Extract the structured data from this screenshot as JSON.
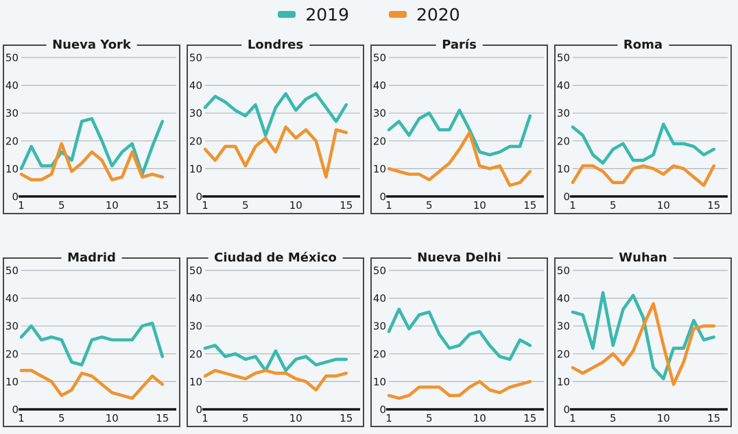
{
  "colors": {
    "background": "#f2f6f8",
    "series_2019": "#3bb8ae",
    "series_2020": "#f0932f",
    "grid": "#b0b5b9",
    "axis": "#141414",
    "frame": "#474747",
    "text": "#1a1a1a"
  },
  "legend": {
    "position": "top-center",
    "items": [
      {
        "label": "2019",
        "color": "#3bb8ae"
      },
      {
        "label": "2020",
        "color": "#f0932f"
      }
    ]
  },
  "chart_data": [
    {
      "type": "line",
      "title": "Nueva York",
      "x": [
        1,
        2,
        3,
        4,
        5,
        6,
        7,
        8,
        9,
        10,
        11,
        12,
        13,
        14,
        15
      ],
      "xticks": [
        1,
        5,
        10,
        15
      ],
      "yticks": [
        0,
        10,
        20,
        30,
        40,
        50
      ],
      "ylim": [
        0,
        50
      ],
      "grid": true,
      "series": [
        {
          "name": "2019",
          "color": "#3bb8ae",
          "values": [
            10,
            18,
            11,
            11,
            16,
            13,
            27,
            28,
            20,
            11,
            16,
            19,
            8,
            18,
            27
          ]
        },
        {
          "name": "2020",
          "color": "#f0932f",
          "values": [
            8,
            6,
            6,
            8,
            19,
            9,
            12,
            16,
            13,
            6,
            7,
            16,
            7,
            8,
            7
          ]
        }
      ]
    },
    {
      "type": "line",
      "title": "Londres",
      "x": [
        1,
        2,
        3,
        4,
        5,
        6,
        7,
        8,
        9,
        10,
        11,
        12,
        13,
        14,
        15
      ],
      "xticks": [
        1,
        5,
        10,
        15
      ],
      "yticks": [
        0,
        10,
        20,
        30,
        40,
        50
      ],
      "ylim": [
        0,
        50
      ],
      "grid": true,
      "series": [
        {
          "name": "2019",
          "color": "#3bb8ae",
          "values": [
            32,
            36,
            34,
            31,
            29,
            33,
            22,
            32,
            37,
            31,
            35,
            37,
            32,
            27,
            33
          ]
        },
        {
          "name": "2020",
          "color": "#f0932f",
          "values": [
            17,
            13,
            18,
            18,
            11,
            18,
            21,
            16,
            25,
            21,
            24,
            20,
            7,
            24,
            23
          ]
        }
      ]
    },
    {
      "type": "line",
      "title": "París",
      "x": [
        1,
        2,
        3,
        4,
        5,
        6,
        7,
        8,
        9,
        10,
        11,
        12,
        13,
        14,
        15
      ],
      "xticks": [
        1,
        5,
        10,
        15
      ],
      "yticks": [
        0,
        10,
        20,
        30,
        40,
        50
      ],
      "ylim": [
        0,
        50
      ],
      "grid": true,
      "series": [
        {
          "name": "2019",
          "color": "#3bb8ae",
          "values": [
            24,
            27,
            22,
            28,
            30,
            24,
            24,
            31,
            24,
            16,
            15,
            16,
            18,
            18,
            29
          ]
        },
        {
          "name": "2020",
          "color": "#f0932f",
          "values": [
            10,
            9,
            8,
            8,
            6,
            9,
            12,
            17,
            23,
            11,
            10,
            11,
            4,
            5,
            9
          ]
        }
      ]
    },
    {
      "type": "line",
      "title": "Roma",
      "x": [
        1,
        2,
        3,
        4,
        5,
        6,
        7,
        8,
        9,
        10,
        11,
        12,
        13,
        14,
        15
      ],
      "xticks": [
        1,
        5,
        10,
        15
      ],
      "yticks": [
        0,
        10,
        20,
        30,
        40,
        50
      ],
      "ylim": [
        0,
        50
      ],
      "grid": true,
      "series": [
        {
          "name": "2019",
          "color": "#3bb8ae",
          "values": [
            25,
            22,
            15,
            12,
            17,
            19,
            13,
            13,
            15,
            26,
            19,
            19,
            18,
            15,
            17
          ]
        },
        {
          "name": "2020",
          "color": "#f0932f",
          "values": [
            5,
            11,
            11,
            9,
            5,
            5,
            10,
            11,
            10,
            8,
            11,
            10,
            7,
            4,
            11
          ]
        }
      ]
    },
    {
      "type": "line",
      "title": "Madrid",
      "x": [
        1,
        2,
        3,
        4,
        5,
        6,
        7,
        8,
        9,
        10,
        11,
        12,
        13,
        14,
        15
      ],
      "xticks": [
        1,
        5,
        10,
        15
      ],
      "yticks": [
        0,
        10,
        20,
        30,
        40,
        50
      ],
      "ylim": [
        0,
        50
      ],
      "grid": true,
      "series": [
        {
          "name": "2019",
          "color": "#3bb8ae",
          "values": [
            26,
            30,
            25,
            26,
            25,
            17,
            16,
            25,
            26,
            25,
            25,
            25,
            30,
            31,
            19
          ]
        },
        {
          "name": "2020",
          "color": "#f0932f",
          "values": [
            14,
            14,
            12,
            10,
            5,
            7,
            13,
            12,
            9,
            6,
            5,
            4,
            8,
            12,
            9
          ]
        }
      ]
    },
    {
      "type": "line",
      "title": "Ciudad de México",
      "x": [
        1,
        2,
        3,
        4,
        5,
        6,
        7,
        8,
        9,
        10,
        11,
        12,
        13,
        14,
        15
      ],
      "xticks": [
        1,
        5,
        10,
        15
      ],
      "yticks": [
        0,
        10,
        20,
        30,
        40,
        50
      ],
      "ylim": [
        0,
        50
      ],
      "grid": true,
      "series": [
        {
          "name": "2019",
          "color": "#3bb8ae",
          "values": [
            22,
            23,
            19,
            20,
            18,
            19,
            14,
            21,
            14,
            18,
            19,
            16,
            17,
            18,
            18
          ]
        },
        {
          "name": "2020",
          "color": "#f0932f",
          "values": [
            12,
            14,
            13,
            12,
            11,
            13,
            14,
            13,
            13,
            11,
            10,
            7,
            12,
            12,
            13
          ]
        }
      ]
    },
    {
      "type": "line",
      "title": "Nueva Delhi",
      "x": [
        1,
        2,
        3,
        4,
        5,
        6,
        7,
        8,
        9,
        10,
        11,
        12,
        13,
        14,
        15
      ],
      "xticks": [
        1,
        5,
        10,
        15
      ],
      "yticks": [
        0,
        10,
        20,
        30,
        40,
        50
      ],
      "ylim": [
        0,
        50
      ],
      "grid": true,
      "series": [
        {
          "name": "2019",
          "color": "#3bb8ae",
          "values": [
            28,
            36,
            29,
            34,
            35,
            27,
            22,
            23,
            27,
            28,
            23,
            19,
            18,
            25,
            23
          ]
        },
        {
          "name": "2020",
          "color": "#f0932f",
          "values": [
            5,
            4,
            5,
            8,
            8,
            8,
            5,
            5,
            8,
            10,
            7,
            6,
            8,
            9,
            10
          ]
        }
      ]
    },
    {
      "type": "line",
      "title": "Wuhan",
      "x": [
        1,
        2,
        3,
        4,
        5,
        6,
        7,
        8,
        9,
        10,
        11,
        12,
        13,
        14,
        15
      ],
      "xticks": [
        1,
        5,
        10,
        15
      ],
      "yticks": [
        0,
        10,
        20,
        30,
        40,
        50
      ],
      "ylim": [
        0,
        50
      ],
      "grid": true,
      "series": [
        {
          "name": "2019",
          "color": "#3bb8ae",
          "values": [
            35,
            34,
            22,
            42,
            23,
            36,
            41,
            33,
            15,
            11,
            22,
            22,
            32,
            25,
            26
          ]
        },
        {
          "name": "2020",
          "color": "#f0932f",
          "values": [
            15,
            13,
            15,
            17,
            20,
            16,
            21,
            30,
            38,
            23,
            9,
            17,
            29,
            30,
            30
          ]
        }
      ]
    }
  ]
}
